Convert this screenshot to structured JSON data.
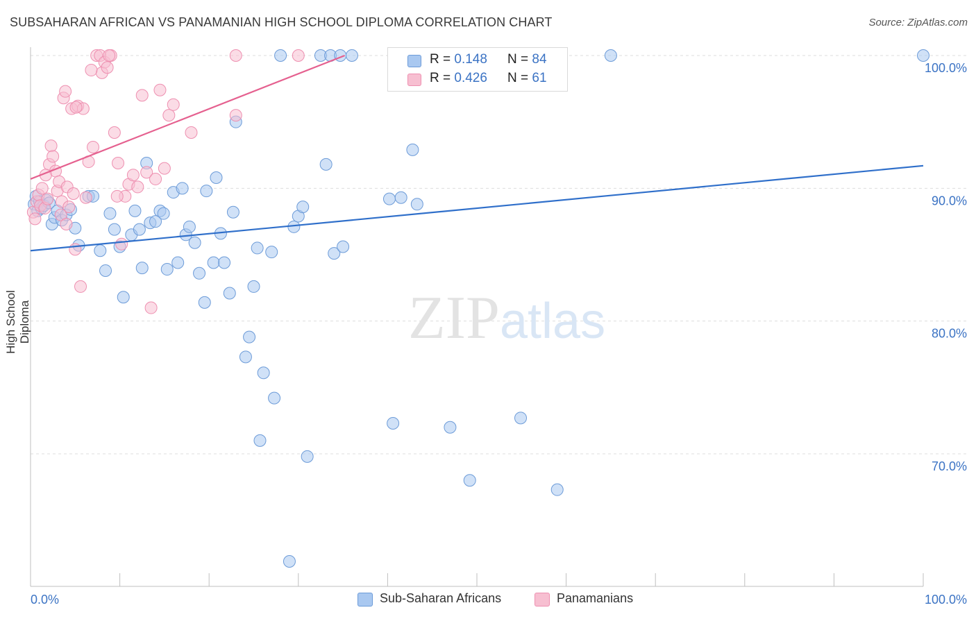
{
  "header": {
    "title": "SUBSAHARAN AFRICAN VS PANAMANIAN HIGH SCHOOL DIPLOMA CORRELATION CHART",
    "source": "Source: ZipAtlas.com"
  },
  "legend_box": {
    "rows": [
      {
        "r_label": "R = ",
        "r_value": "0.148",
        "n_label": "N = ",
        "n_value": "84"
      },
      {
        "r_label": "R = ",
        "r_value": "0.426",
        "n_label": "N = ",
        "n_value": "61"
      }
    ]
  },
  "watermark": {
    "zip": "ZIP",
    "atlas": "atlas"
  },
  "colors": {
    "blue_fill": "#a9c8f0",
    "blue_stroke": "#6c9bd8",
    "blue_line": "#2f6fca",
    "pink_fill": "#f7bfd1",
    "pink_stroke": "#ee8fb0",
    "pink_line": "#e5608f",
    "tick_text": "#3b73c4",
    "grid": "#dddddd"
  },
  "chart_data": {
    "type": "scatter",
    "title": "SUBSAHARAN AFRICAN VS PANAMANIAN HIGH SCHOOL DIPLOMA CORRELATION CHART",
    "xlabel": "",
    "ylabel": "High School Diploma",
    "xlim": [
      0,
      100
    ],
    "ylim": [
      61.5,
      101
    ],
    "x_tick_labels": [
      "0.0%",
      "100.0%"
    ],
    "y_ticks": [
      70,
      80,
      90,
      100
    ],
    "y_tick_labels": [
      "70.0%",
      "80.0%",
      "90.0%",
      "100.0%"
    ],
    "grid": true,
    "legend_position": "bottom",
    "series": [
      {
        "name": "Sub-Saharan Africans",
        "color": "#a9c8f0",
        "R": 0.148,
        "N": 84,
        "trend": {
          "x": [
            0,
            100
          ],
          "y": [
            85.3,
            91.7
          ]
        },
        "points": [
          [
            0.4,
            88.8
          ],
          [
            0.6,
            89.4
          ],
          [
            0.8,
            88.3
          ],
          [
            1.0,
            89.0
          ],
          [
            1.2,
            88.5
          ],
          [
            1.5,
            88.7
          ],
          [
            1.8,
            89.1
          ],
          [
            2.1,
            88.9
          ],
          [
            2.4,
            87.3
          ],
          [
            2.7,
            87.8
          ],
          [
            3.0,
            88.3
          ],
          [
            3.5,
            87.6
          ],
          [
            4.0,
            88.0
          ],
          [
            4.5,
            88.4
          ],
          [
            5.0,
            87.0
          ],
          [
            5.4,
            85.7
          ],
          [
            6.5,
            89.4
          ],
          [
            7.0,
            89.4
          ],
          [
            7.8,
            85.3
          ],
          [
            8.4,
            83.8
          ],
          [
            8.9,
            88.1
          ],
          [
            9.4,
            86.9
          ],
          [
            10.0,
            85.6
          ],
          [
            10.4,
            81.8
          ],
          [
            11.3,
            86.5
          ],
          [
            11.7,
            88.3
          ],
          [
            12.2,
            86.9
          ],
          [
            12.5,
            84.0
          ],
          [
            13.0,
            91.9
          ],
          [
            13.4,
            87.4
          ],
          [
            14.0,
            87.5
          ],
          [
            14.5,
            88.3
          ],
          [
            14.9,
            88.1
          ],
          [
            15.3,
            83.9
          ],
          [
            16.0,
            89.7
          ],
          [
            16.5,
            84.4
          ],
          [
            17.0,
            90.0
          ],
          [
            17.4,
            86.5
          ],
          [
            17.8,
            87.1
          ],
          [
            18.4,
            85.9
          ],
          [
            18.9,
            83.6
          ],
          [
            19.5,
            81.4
          ],
          [
            19.7,
            89.8
          ],
          [
            20.5,
            84.4
          ],
          [
            20.8,
            90.8
          ],
          [
            21.3,
            86.6
          ],
          [
            21.7,
            84.4
          ],
          [
            22.3,
            82.1
          ],
          [
            22.7,
            88.2
          ],
          [
            23.0,
            95.0
          ],
          [
            24.1,
            77.3
          ],
          [
            24.5,
            78.8
          ],
          [
            25.0,
            82.6
          ],
          [
            25.4,
            85.5
          ],
          [
            25.7,
            71.0
          ],
          [
            26.1,
            76.1
          ],
          [
            27.0,
            85.2
          ],
          [
            27.3,
            74.2
          ],
          [
            28.0,
            100.0
          ],
          [
            29.0,
            61.9
          ],
          [
            29.5,
            87.1
          ],
          [
            30.0,
            87.9
          ],
          [
            30.5,
            88.6
          ],
          [
            31.0,
            69.8
          ],
          [
            32.5,
            100.0
          ],
          [
            33.1,
            91.8
          ],
          [
            33.6,
            100.0
          ],
          [
            34.0,
            85.1
          ],
          [
            34.7,
            100.0
          ],
          [
            35.0,
            85.6
          ],
          [
            36.0,
            100.0
          ],
          [
            40.2,
            89.2
          ],
          [
            40.6,
            72.3
          ],
          [
            41.5,
            89.3
          ],
          [
            42.8,
            92.9
          ],
          [
            43.3,
            88.8
          ],
          [
            47.0,
            72.0
          ],
          [
            49.2,
            68.0
          ],
          [
            54.0,
            100.0
          ],
          [
            54.9,
            72.7
          ],
          [
            56.0,
            99.2
          ],
          [
            59.0,
            67.3
          ],
          [
            65.0,
            100.0
          ],
          [
            100.0,
            100.0
          ]
        ]
      },
      {
        "name": "Panamanians",
        "color": "#f7bfd1",
        "R": 0.426,
        "N": 61,
        "trend": {
          "x": [
            0,
            35.2
          ],
          "y": [
            90.7,
            100.0
          ]
        },
        "points": [
          [
            0.3,
            88.2
          ],
          [
            0.5,
            87.7
          ],
          [
            0.7,
            89.0
          ],
          [
            0.9,
            89.5
          ],
          [
            1.1,
            88.7
          ],
          [
            1.3,
            90.0
          ],
          [
            1.6,
            88.5
          ],
          [
            1.9,
            89.2
          ],
          [
            2.1,
            91.8
          ],
          [
            2.3,
            93.2
          ],
          [
            2.5,
            92.4
          ],
          [
            2.8,
            91.3
          ],
          [
            3.0,
            89.8
          ],
          [
            3.2,
            90.5
          ],
          [
            3.5,
            89.0
          ],
          [
            3.7,
            96.8
          ],
          [
            3.9,
            97.3
          ],
          [
            4.1,
            90.1
          ],
          [
            4.3,
            88.6
          ],
          [
            4.6,
            96.0
          ],
          [
            4.8,
            89.6
          ],
          [
            5.0,
            85.4
          ],
          [
            5.3,
            96.2
          ],
          [
            5.6,
            82.6
          ],
          [
            5.9,
            96.0
          ],
          [
            6.2,
            89.3
          ],
          [
            6.5,
            92.0
          ],
          [
            7.0,
            93.1
          ],
          [
            7.4,
            100.0
          ],
          [
            7.8,
            100.0
          ],
          [
            8.0,
            98.7
          ],
          [
            8.3,
            99.5
          ],
          [
            8.6,
            99.1
          ],
          [
            9.0,
            100.0
          ],
          [
            9.4,
            94.2
          ],
          [
            9.8,
            91.9
          ],
          [
            10.2,
            85.8
          ],
          [
            10.6,
            89.4
          ],
          [
            11.0,
            90.3
          ],
          [
            11.5,
            91.0
          ],
          [
            12.0,
            90.1
          ],
          [
            12.5,
            97.0
          ],
          [
            13.0,
            91.2
          ],
          [
            13.5,
            81.0
          ],
          [
            14.0,
            90.7
          ],
          [
            14.5,
            97.4
          ],
          [
            15.0,
            91.5
          ],
          [
            15.5,
            95.5
          ],
          [
            16.0,
            96.3
          ],
          [
            18.0,
            94.2
          ],
          [
            23.0,
            95.5
          ],
          [
            23.0,
            100.0
          ],
          [
            30.0,
            100.0
          ],
          [
            41.0,
            100.0
          ],
          [
            3.4,
            88.0
          ],
          [
            6.8,
            98.9
          ],
          [
            8.8,
            100.0
          ],
          [
            1.7,
            91.0
          ],
          [
            5.1,
            96.1
          ],
          [
            9.7,
            89.4
          ],
          [
            4.0,
            87.3
          ]
        ]
      }
    ]
  },
  "bottom_legend": {
    "items": [
      {
        "label": "Sub-Saharan Africans"
      },
      {
        "label": "Panamanians"
      }
    ]
  }
}
